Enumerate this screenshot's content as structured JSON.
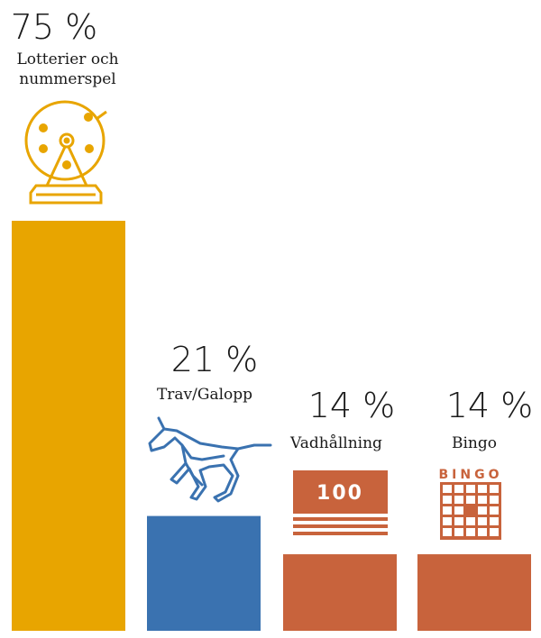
{
  "chart_data": {
    "type": "bar",
    "title": "",
    "xlabel": "",
    "ylabel": "",
    "ylim": [
      0,
      75
    ],
    "grid": false,
    "categories": [
      "Lotterier och nummerspel",
      "Trav/Galopp",
      "Vadhållning",
      "Bingo"
    ],
    "category_lines": [
      [
        "Lotterier och",
        "nummerspel"
      ],
      [
        "Trav/Galopp"
      ],
      [
        "Vadhållning"
      ],
      [
        "Bingo"
      ]
    ],
    "values": [
      75,
      21,
      14,
      14
    ],
    "value_labels": [
      "75 %",
      "21 %",
      "14 %",
      "14 %"
    ],
    "colors": [
      "#E8A500",
      "#3A72B0",
      "#C8633C",
      "#C8633C"
    ],
    "icons": [
      "lottery-drum-icon",
      "horse-icon",
      "betting-slip-icon",
      "bingo-card-icon"
    ]
  },
  "icon_text": {
    "betting": "100",
    "bingo": "BINGO"
  }
}
